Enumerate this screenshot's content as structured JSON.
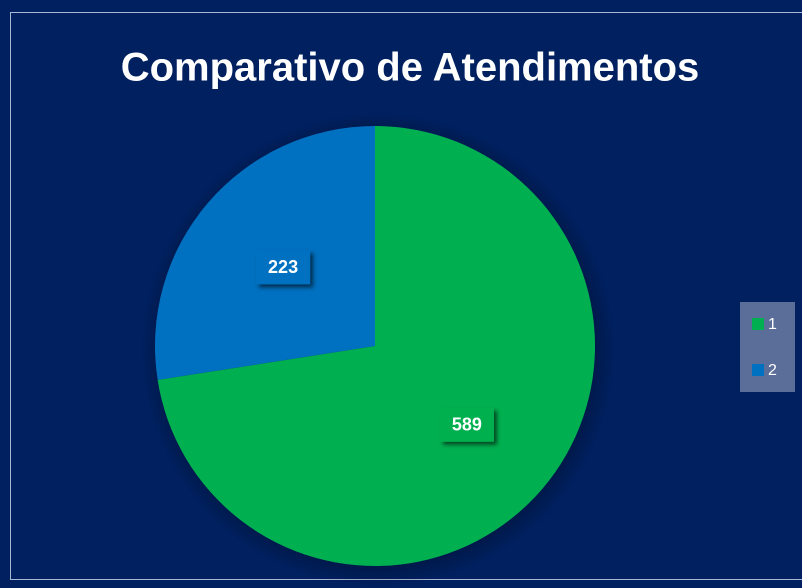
{
  "chart_data": {
    "type": "pie",
    "title": "Comparativo de Atendimentos",
    "categories": [
      "1",
      "2"
    ],
    "values": [
      589,
      223
    ],
    "colors": [
      "#00b050",
      "#0070c0"
    ],
    "legend": "right"
  }
}
